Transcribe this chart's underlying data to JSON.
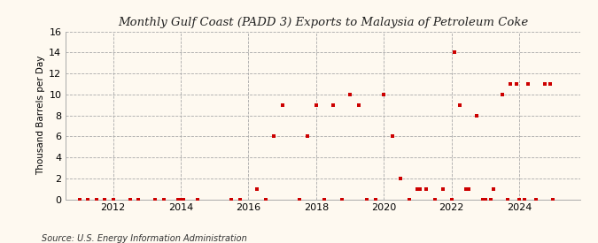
{
  "title": "Gulf Coast (PADD 3) Exports to Malaysia of Petroleum Coke",
  "title_prefix": "Monthly ",
  "ylabel": "Thousand Barrels per Day",
  "source": "Source: U.S. Energy Information Administration",
  "background_color": "#fef9f0",
  "marker_color": "#cc0000",
  "grid_color": "#aaaaaa",
  "ylim": [
    0,
    16
  ],
  "yticks": [
    0,
    2,
    4,
    6,
    8,
    10,
    12,
    14,
    16
  ],
  "xlim": [
    2010.6,
    2025.8
  ],
  "xtick_years": [
    2012,
    2014,
    2016,
    2018,
    2020,
    2022,
    2024
  ],
  "data_points": [
    [
      2011.0,
      0
    ],
    [
      2011.25,
      0
    ],
    [
      2011.5,
      0
    ],
    [
      2011.75,
      0
    ],
    [
      2012.0,
      0
    ],
    [
      2012.5,
      0
    ],
    [
      2012.75,
      0
    ],
    [
      2013.25,
      0
    ],
    [
      2013.5,
      0
    ],
    [
      2013.92,
      0
    ],
    [
      2014.0,
      0
    ],
    [
      2014.08,
      0
    ],
    [
      2014.5,
      0
    ],
    [
      2015.5,
      0
    ],
    [
      2015.75,
      0
    ],
    [
      2016.25,
      1
    ],
    [
      2016.5,
      0
    ],
    [
      2016.75,
      6
    ],
    [
      2017.0,
      9
    ],
    [
      2017.5,
      0
    ],
    [
      2017.75,
      6
    ],
    [
      2018.0,
      9
    ],
    [
      2018.25,
      0
    ],
    [
      2018.5,
      9
    ],
    [
      2018.75,
      0
    ],
    [
      2019.0,
      10
    ],
    [
      2019.25,
      9
    ],
    [
      2019.5,
      0
    ],
    [
      2019.75,
      0
    ],
    [
      2020.0,
      10
    ],
    [
      2020.25,
      6
    ],
    [
      2020.5,
      2
    ],
    [
      2020.75,
      0
    ],
    [
      2021.0,
      1
    ],
    [
      2021.08,
      1
    ],
    [
      2021.25,
      1
    ],
    [
      2021.5,
      0
    ],
    [
      2021.75,
      1
    ],
    [
      2022.0,
      0
    ],
    [
      2022.08,
      14
    ],
    [
      2022.25,
      9
    ],
    [
      2022.42,
      1
    ],
    [
      2022.5,
      1
    ],
    [
      2022.75,
      8
    ],
    [
      2022.92,
      0
    ],
    [
      2023.0,
      0
    ],
    [
      2023.17,
      0
    ],
    [
      2023.25,
      1
    ],
    [
      2023.5,
      10
    ],
    [
      2023.67,
      0
    ],
    [
      2023.75,
      11
    ],
    [
      2023.92,
      11
    ],
    [
      2024.0,
      0
    ],
    [
      2024.17,
      0
    ],
    [
      2024.25,
      11
    ],
    [
      2024.5,
      0
    ],
    [
      2024.75,
      11
    ],
    [
      2024.92,
      11
    ],
    [
      2025.0,
      0
    ]
  ]
}
